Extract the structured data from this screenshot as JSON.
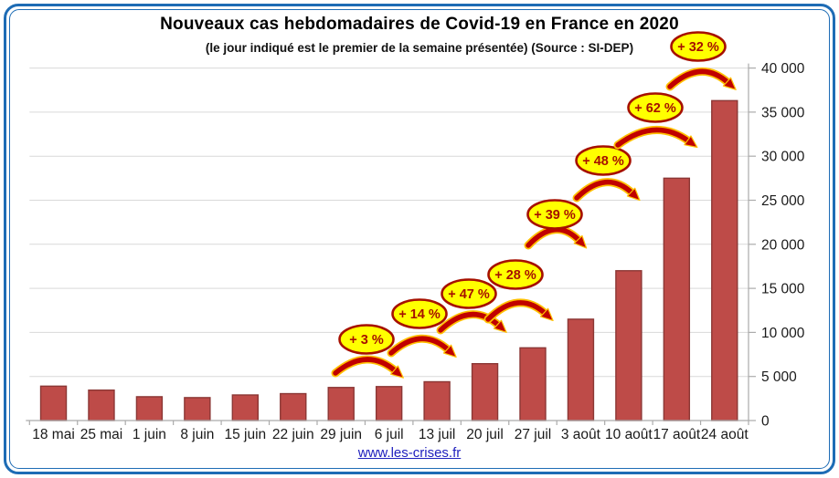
{
  "chart": {
    "title": "Nouveaux cas hebdomadaires de Covid-19 en France en 2020",
    "subtitle": "(le jour indiqué est le premier de la semaine présentée) (Source : SI-DEP)",
    "source_link": "www.les-crises.fr"
  },
  "chart_data": {
    "type": "bar",
    "title": "Nouveaux cas hebdomadaires de Covid-19 en France en 2020",
    "subtitle": "(le jour indiqué est le premier de la semaine présentée) (Source : SI-DEP)",
    "categories": [
      "18 mai",
      "25 mai",
      "1 juin",
      "8 juin",
      "15 juin",
      "22 juin",
      "29 juin",
      "6 juil",
      "13 juil",
      "20 juil",
      "27 juil",
      "3 août",
      "10 août",
      "17 août",
      "24 août"
    ],
    "values": [
      3900,
      3450,
      2700,
      2600,
      2900,
      3050,
      3750,
      3850,
      4400,
      6450,
      8250,
      11500,
      17000,
      27500,
      36300
    ],
    "xlabel": "",
    "ylabel": "",
    "ylim": [
      0,
      40000
    ],
    "ytick_step": 5000,
    "ytick_labels": [
      "0",
      "5 000",
      "10 000",
      "15 000",
      "20 000",
      "25 000",
      "30 000",
      "35 000",
      "40 000"
    ],
    "yaxis_side": "right",
    "grid": true,
    "legend": false,
    "annotations": [
      {
        "label": "+ 3 %",
        "from": "29 juin",
        "to": "6 juil",
        "ellipse": [
          401,
          372
        ],
        "arrow": [
          367,
          409,
          433,
          407
        ]
      },
      {
        "label": "+ 14 %",
        "from": "6 juil",
        "to": "13 juil",
        "ellipse": [
          459,
          344
        ],
        "arrow": [
          428,
          387,
          491,
          384
        ]
      },
      {
        "label": "+ 47 %",
        "from": "13 juil",
        "to": "20 juil",
        "ellipse": [
          513,
          322
        ],
        "arrow": [
          482,
          362,
          546,
          357
        ]
      },
      {
        "label": "+ 28 %",
        "from": "20 juil",
        "to": "27 juil",
        "ellipse": [
          564,
          301
        ],
        "arrow": [
          534,
          350,
          597,
          344
        ]
      },
      {
        "label": "+ 39 %",
        "from": "27 juil",
        "to": "3 août",
        "ellipse": [
          607,
          235
        ],
        "arrow": [
          578,
          269,
          634,
          264
        ]
      },
      {
        "label": "+ 48 %",
        "from": "3 août",
        "to": "10 août",
        "ellipse": [
          660,
          176
        ],
        "arrow": [
          631,
          217,
          692,
          212
        ]
      },
      {
        "label": "+ 62 %",
        "from": "10 août",
        "to": "17 août",
        "ellipse": [
          717,
          118
        ],
        "arrow": [
          676,
          159,
          754,
          155
        ]
      },
      {
        "label": "+ 32 %",
        "from": "17 août",
        "to": "24 août",
        "ellipse": [
          764,
          51
        ],
        "arrow": [
          733,
          95,
          797,
          91
        ]
      }
    ],
    "colors": {
      "bar_fill": "#BE4B48",
      "bar_border": "#8B3735",
      "grid": "#D9D9D9",
      "axis": "#ABABAB",
      "tick_text": "#1A1A1A",
      "badge_fill": "#FFFF00",
      "badge_border": "#A61000",
      "badge_text": "#A61000",
      "arrow": "#C00000",
      "arrow_outline": "#FFC000",
      "frame": "#1E6CB5",
      "link": "#2121BE"
    }
  }
}
